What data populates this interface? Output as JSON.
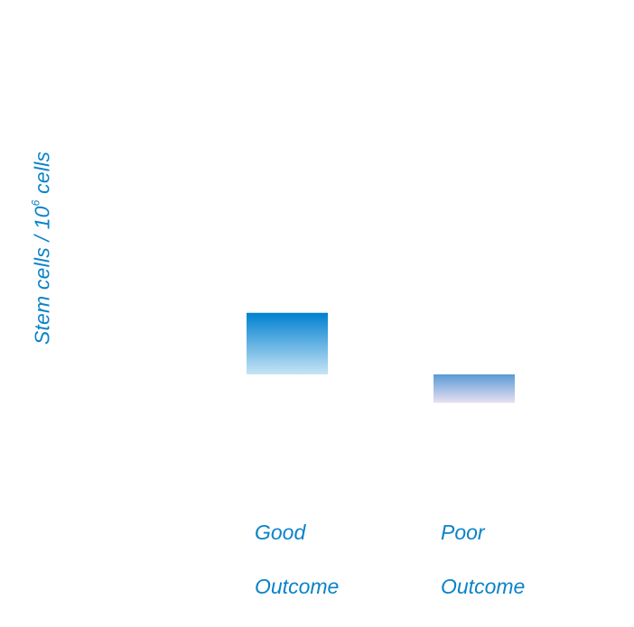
{
  "chart_data": {
    "type": "bar",
    "title": "",
    "xlabel": "",
    "ylabel": {
      "prefix": "Stem cells / 10",
      "superscript": "6",
      "suffix": " cells"
    },
    "categories": [
      {
        "line1": "Good",
        "line2": "Outcome"
      },
      {
        "line1": "Poor",
        "line2": "Outcome"
      }
    ],
    "bars": [
      {
        "low": 2.0,
        "high": 3.3,
        "color_top": "#0080d0",
        "color_bottom": "#c6e4f5"
      },
      {
        "low": 1.4,
        "high": 2.0,
        "color_top": "#5a9ad6",
        "color_bottom": "#e8e0f2"
      }
    ],
    "ylim": [
      0,
      8
    ],
    "grid": false,
    "legend": "none"
  }
}
